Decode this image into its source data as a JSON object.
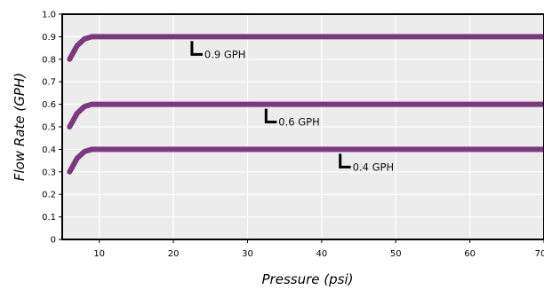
{
  "chart_data": {
    "type": "line",
    "title": "",
    "xlabel": "Pressure (psi)",
    "ylabel": "Flow Rate (GPH)",
    "xlim": [
      5,
      70
    ],
    "ylim": [
      0,
      1.0
    ],
    "x_ticks": [
      "10",
      "20",
      "30",
      "40",
      "50",
      "60",
      "70"
    ],
    "y_ticks": [
      "0",
      "0.1",
      "0.2",
      "0.3",
      "0.4",
      "0.5",
      "0.6",
      "0.7",
      "0.8",
      "0.9",
      "1.0"
    ],
    "grid": true,
    "background": "#ececec",
    "line_color": "#7b3a7f",
    "series": [
      {
        "name": "0.9 GPH",
        "x": [
          6,
          7,
          8,
          9,
          10,
          20,
          30,
          40,
          50,
          60,
          70
        ],
        "y": [
          0.8,
          0.86,
          0.89,
          0.9,
          0.9,
          0.9,
          0.9,
          0.9,
          0.9,
          0.9,
          0.9
        ]
      },
      {
        "name": "0.6 GPH",
        "x": [
          6,
          7,
          8,
          9,
          10,
          20,
          30,
          40,
          50,
          60,
          70
        ],
        "y": [
          0.5,
          0.56,
          0.59,
          0.6,
          0.6,
          0.6,
          0.6,
          0.6,
          0.6,
          0.6,
          0.6
        ]
      },
      {
        "name": "0.4 GPH",
        "x": [
          6,
          7,
          8,
          9,
          10,
          20,
          30,
          40,
          50,
          60,
          70
        ],
        "y": [
          0.3,
          0.36,
          0.39,
          0.4,
          0.4,
          0.4,
          0.4,
          0.4,
          0.4,
          0.4,
          0.4
        ]
      }
    ],
    "annotations": [
      {
        "text": "0.9 GPH",
        "x": 22.5,
        "y": 0.9
      },
      {
        "text": "0.6 GPH",
        "x": 32.5,
        "y": 0.6
      },
      {
        "text": "0.4 GPH",
        "x": 42.5,
        "y": 0.4
      }
    ]
  }
}
